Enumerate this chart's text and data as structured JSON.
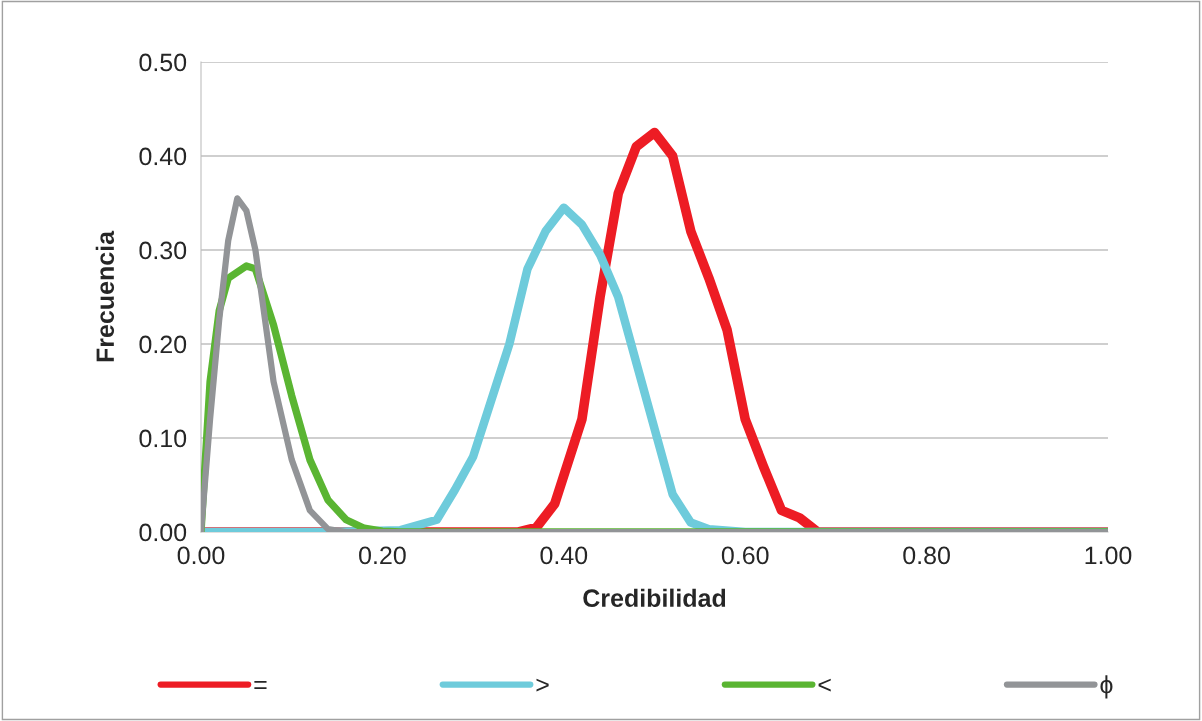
{
  "chart_data": {
    "type": "line",
    "xlabel": "Credibilidad",
    "ylabel": "Frecuencia",
    "xlim": [
      0,
      1
    ],
    "ylim": [
      0,
      0.5
    ],
    "xticks": [
      {
        "value": 0,
        "label": "0.00"
      },
      {
        "value": 0.2,
        "label": "0.20"
      },
      {
        "value": 0.4,
        "label": "0.40"
      },
      {
        "value": 0.6,
        "label": "0.60"
      },
      {
        "value": 0.8,
        "label": "0.80"
      },
      {
        "value": 1,
        "label": "1.00"
      }
    ],
    "yticks": [
      {
        "value": 0,
        "label": "0.00"
      },
      {
        "value": 0.1,
        "label": "0.10"
      },
      {
        "value": 0.2,
        "label": "0.20"
      },
      {
        "value": 0.3,
        "label": "0.30"
      },
      {
        "value": 0.4,
        "label": "0.40"
      },
      {
        "value": 0.5,
        "label": "0.50"
      }
    ],
    "grid": "y",
    "legend": "bottom",
    "marker": "none",
    "line_style": "solid",
    "series": [
      {
        "name": "=",
        "color": "#ed1c24",
        "x": [
          0,
          0.35,
          0.37,
          0.39,
          0.42,
          0.44,
          0.46,
          0.48,
          0.5,
          0.52,
          0.54,
          0.56,
          0.58,
          0.6,
          0.62,
          0.64,
          0.66,
          0.68,
          1
        ],
        "values": [
          0,
          0,
          0.005,
          0.03,
          0.12,
          0.25,
          0.36,
          0.41,
          0.425,
          0.4,
          0.32,
          0.27,
          0.215,
          0.12,
          0.07,
          0.023,
          0.015,
          0,
          0
        ]
      },
      {
        "name": ">",
        "color": "#6ecbdb",
        "x": [
          0,
          0.14,
          0.22,
          0.26,
          0.28,
          0.3,
          0.32,
          0.34,
          0.36,
          0.38,
          0.4,
          0.42,
          0.44,
          0.46,
          0.48,
          0.5,
          0.52,
          0.54,
          0.56,
          0.6,
          1
        ],
        "values": [
          0,
          0,
          0.002,
          0.013,
          0.045,
          0.08,
          0.14,
          0.2,
          0.28,
          0.32,
          0.345,
          0.327,
          0.295,
          0.25,
          0.18,
          0.11,
          0.04,
          0.01,
          0.003,
          0,
          0
        ]
      },
      {
        "name": "<",
        "color": "#5ab532",
        "x": [
          0,
          0.01,
          0.02,
          0.03,
          0.05,
          0.06,
          0.08,
          0.1,
          0.12,
          0.14,
          0.16,
          0.18,
          0.2,
          0.22,
          1
        ],
        "values": [
          0,
          0.16,
          0.235,
          0.27,
          0.283,
          0.28,
          0.22,
          0.145,
          0.077,
          0.034,
          0.013,
          0.004,
          0.001,
          0,
          0
        ]
      },
      {
        "name": "ϕ",
        "color": "#929497",
        "x": [
          0,
          0.01,
          0.02,
          0.03,
          0.04,
          0.05,
          0.06,
          0.08,
          0.1,
          0.12,
          0.14,
          0.16,
          1
        ],
        "values": [
          0,
          0.12,
          0.225,
          0.31,
          0.355,
          0.342,
          0.3,
          0.16,
          0.077,
          0.023,
          0.003,
          0,
          0
        ]
      }
    ]
  }
}
